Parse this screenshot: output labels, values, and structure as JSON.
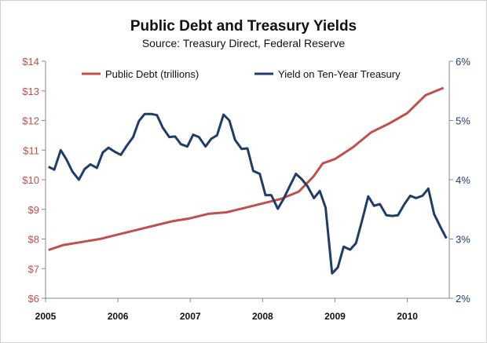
{
  "chart_data": {
    "type": "line",
    "title": "Public Debt and Treasury Yields",
    "subtitle": "Source: Treasury Direct, Federal Reserve",
    "legend_placement": "top",
    "grid": false,
    "y_left": {
      "ylim": [
        6,
        14
      ],
      "ticks": [
        6,
        7,
        8,
        9,
        10,
        11,
        12,
        13,
        14
      ],
      "tick_labels": [
        "$6",
        "$7",
        "$8",
        "$9",
        "$10",
        "$11",
        "$12",
        "$13",
        "$14"
      ]
    },
    "y_right": {
      "ylim": [
        2,
        6
      ],
      "ticks": [
        2,
        3,
        4,
        5,
        6
      ],
      "tick_labels": [
        "2%",
        "3%",
        "4%",
        "5%",
        "6%"
      ]
    },
    "x": {
      "xlim": [
        2005,
        2010.58
      ],
      "ticks": [
        2005,
        2006,
        2007,
        2008,
        2009,
        2010
      ],
      "tick_labels": [
        "2005",
        "2006",
        "2007",
        "2008",
        "2009",
        "2010"
      ]
    },
    "series": [
      {
        "name": "Public Debt (trillions)",
        "axis": "left",
        "color": "#c0504d",
        "x": [
          2005.04,
          2005.25,
          2005.5,
          2005.75,
          2006.0,
          2006.25,
          2006.5,
          2006.75,
          2007.0,
          2007.25,
          2007.5,
          2007.75,
          2008.0,
          2008.25,
          2008.5,
          2008.7,
          2008.83,
          2009.0,
          2009.25,
          2009.5,
          2009.75,
          2010.0,
          2010.25,
          2010.5
        ],
        "values": [
          7.63,
          7.8,
          7.9,
          8.0,
          8.15,
          8.3,
          8.45,
          8.6,
          8.7,
          8.85,
          8.9,
          9.05,
          9.2,
          9.35,
          9.6,
          10.1,
          10.55,
          10.7,
          11.1,
          11.6,
          11.9,
          12.25,
          12.85,
          13.1
        ]
      },
      {
        "name": "Yield on Ten-Year Treasury",
        "axis": "right",
        "color": "#1f3d6b",
        "x": [
          2005.04,
          2005.12,
          2005.21,
          2005.29,
          2005.37,
          2005.46,
          2005.54,
          2005.62,
          2005.71,
          2005.79,
          2005.87,
          2005.96,
          2006.04,
          2006.12,
          2006.21,
          2006.29,
          2006.37,
          2006.46,
          2006.54,
          2006.62,
          2006.71,
          2006.79,
          2006.87,
          2006.96,
          2007.04,
          2007.12,
          2007.21,
          2007.29,
          2007.37,
          2007.46,
          2007.54,
          2007.62,
          2007.71,
          2007.79,
          2007.87,
          2007.96,
          2008.04,
          2008.12,
          2008.21,
          2008.29,
          2008.37,
          2008.46,
          2008.54,
          2008.62,
          2008.71,
          2008.79,
          2008.87,
          2008.96,
          2009.04,
          2009.12,
          2009.21,
          2009.29,
          2009.37,
          2009.46,
          2009.54,
          2009.62,
          2009.71,
          2009.79,
          2009.87,
          2009.96,
          2010.04,
          2010.12,
          2010.21,
          2010.29,
          2010.37,
          2010.46,
          2010.54
        ],
        "values": [
          4.22,
          4.17,
          4.5,
          4.34,
          4.14,
          4.0,
          4.18,
          4.26,
          4.2,
          4.46,
          4.54,
          4.47,
          4.42,
          4.57,
          4.72,
          4.99,
          5.11,
          5.11,
          5.09,
          4.88,
          4.72,
          4.73,
          4.6,
          4.56,
          4.76,
          4.72,
          4.56,
          4.69,
          4.75,
          5.1,
          5.0,
          4.67,
          4.52,
          4.53,
          4.15,
          4.1,
          3.74,
          3.74,
          3.51,
          3.68,
          3.88,
          4.1,
          4.01,
          3.89,
          3.69,
          3.81,
          3.53,
          2.42,
          2.52,
          2.87,
          2.82,
          2.93,
          3.29,
          3.72,
          3.56,
          3.59,
          3.4,
          3.39,
          3.4,
          3.59,
          3.73,
          3.69,
          3.73,
          3.85,
          3.42,
          3.2,
          3.01
        ]
      }
    ]
  }
}
